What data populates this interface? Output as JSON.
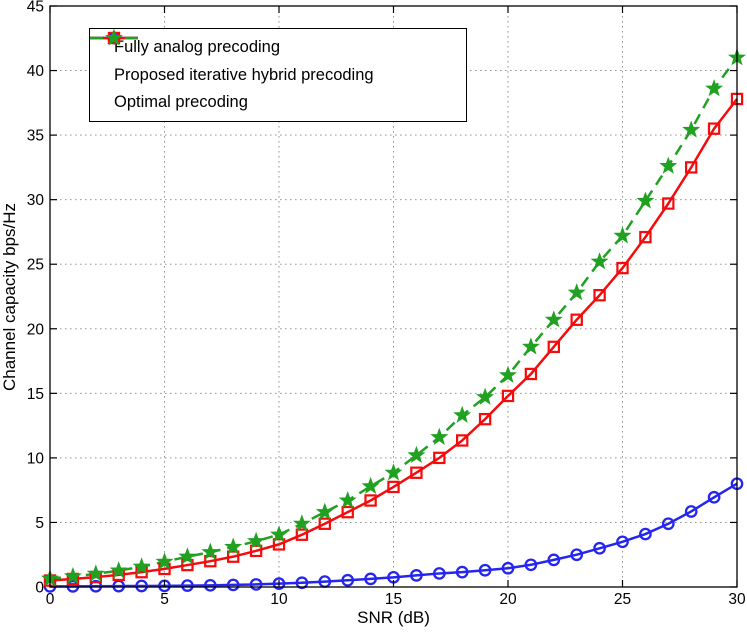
{
  "chart_data": {
    "type": "line",
    "title": "",
    "xlabel": "SNR (dB)",
    "ylabel": "Channel capacity bps/Hz",
    "xlim": [
      0,
      30
    ],
    "ylim": [
      0,
      45
    ],
    "xticks": [
      0,
      5,
      10,
      15,
      20,
      25,
      30
    ],
    "yticks": [
      0,
      5,
      10,
      15,
      20,
      25,
      30,
      35,
      40,
      45
    ],
    "grid": true,
    "grid_style": "dotted",
    "legend_position": "top-left",
    "background": "#ffffff",
    "axis_color": "#000000",
    "grid_color": "#8a8a8a",
    "x": [
      0,
      1,
      2,
      3,
      4,
      5,
      6,
      7,
      8,
      9,
      10,
      11,
      12,
      13,
      14,
      15,
      16,
      17,
      18,
      19,
      20,
      21,
      22,
      23,
      24,
      25,
      26,
      27,
      28,
      29,
      30
    ],
    "series": [
      {
        "name": "Fully analog precoding",
        "color": "#2525f0",
        "line": "solid",
        "marker": "circle",
        "values": [
          0.05,
          0.05,
          0.06,
          0.07,
          0.08,
          0.09,
          0.11,
          0.13,
          0.16,
          0.2,
          0.26,
          0.33,
          0.42,
          0.52,
          0.63,
          0.75,
          0.9,
          1.05,
          1.15,
          1.3,
          1.45,
          1.72,
          2.1,
          2.5,
          3.0,
          3.5,
          4.1,
          4.9,
          5.85,
          6.95,
          8.0
        ]
      },
      {
        "name": "Proposed iterative hybrid precoding",
        "color": "#f40b0b",
        "line": "solid",
        "marker": "square",
        "values": [
          0.5,
          0.62,
          0.77,
          0.94,
          1.15,
          1.4,
          1.7,
          2.0,
          2.35,
          2.8,
          3.3,
          4.05,
          4.9,
          5.8,
          6.7,
          7.75,
          8.85,
          10.0,
          11.35,
          13.0,
          14.8,
          16.5,
          18.6,
          20.7,
          22.6,
          24.7,
          27.1,
          29.7,
          32.5,
          35.5,
          37.8
        ]
      },
      {
        "name": "Optimal precoding",
        "color": "#21a121",
        "line": "dashed",
        "marker": "star",
        "values": [
          0.65,
          0.82,
          1.02,
          1.27,
          1.57,
          1.95,
          2.35,
          2.7,
          3.1,
          3.55,
          4.05,
          4.9,
          5.8,
          6.7,
          7.8,
          8.85,
          10.2,
          11.6,
          13.3,
          14.7,
          16.4,
          18.6,
          20.7,
          22.8,
          25.2,
          27.2,
          29.9,
          32.6,
          35.4,
          38.6,
          41.0
        ]
      }
    ]
  }
}
